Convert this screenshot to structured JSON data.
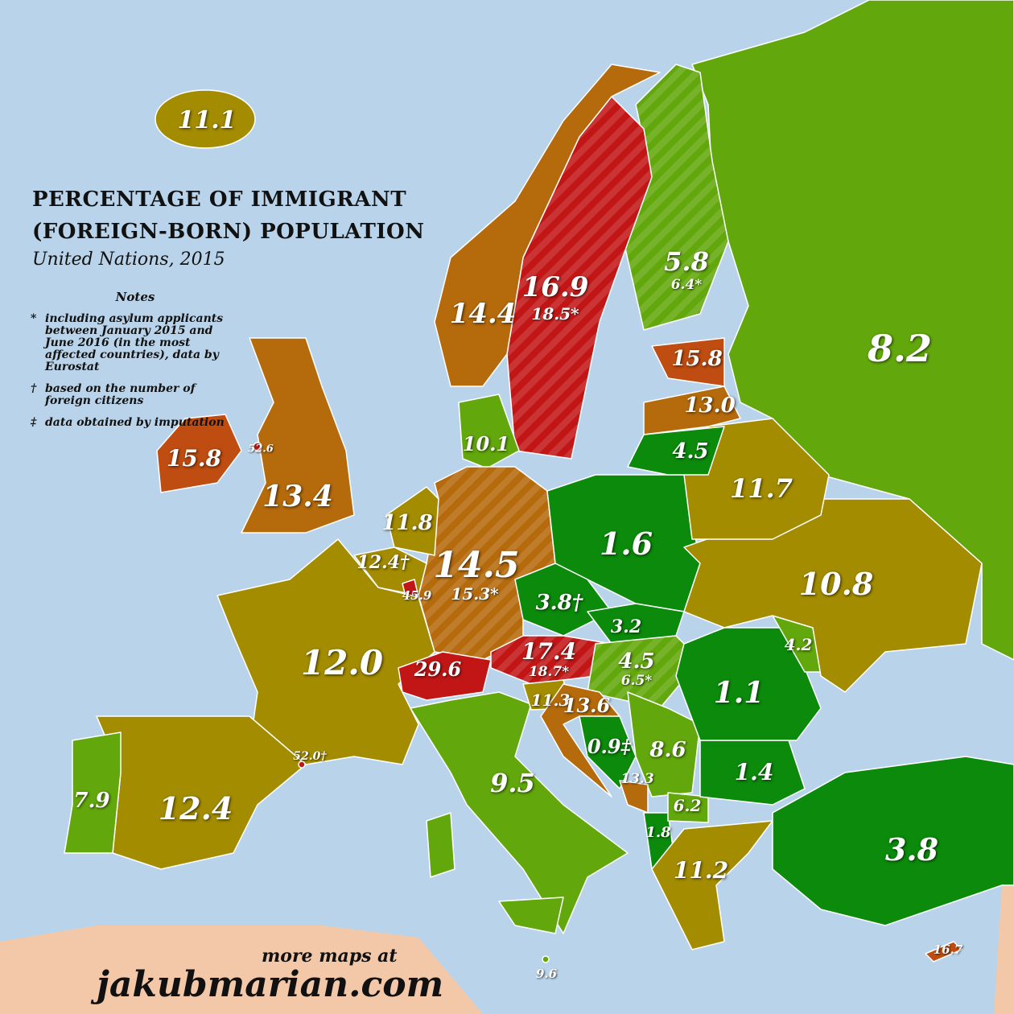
{
  "title_line1": "PERCENTAGE OF IMMIGRANT",
  "title_line2": "(FOREIGN-BORN) POPULATION",
  "subtitle": "United Nations, 2015",
  "notes": {
    "heading": "Notes",
    "items": [
      {
        "mark": "*",
        "text": "including asylum applicants between January 2015 and June 2016 (in the most affected countries), data by Eurostat"
      },
      {
        "mark": "†",
        "text": "based on the number of foreign citizens"
      },
      {
        "mark": "‡",
        "text": "data obtained by imputation"
      }
    ]
  },
  "credit": {
    "line1": "more maps at",
    "line2": "jakubmarian.com"
  },
  "colors": {
    "sea": "#b9d4ea",
    "dark_green": "#0b8a0b",
    "light_green": "#62a80c",
    "olive": "#a38c00",
    "brown": "#b56a0c",
    "orange_red": "#bf4c10",
    "red": "#c21616",
    "non_europe": "#f2c8a8"
  },
  "values": {
    "iceland": "11.1",
    "norway": "14.4",
    "sweden": "16.9",
    "sweden_asylum": "18.5*",
    "finland": "5.8",
    "finland_asylum": "6.4*",
    "russia": "8.2",
    "estonia": "15.8",
    "latvia": "13.0",
    "lithuania": "4.5",
    "belarus": "11.7",
    "ireland": "15.8",
    "isle_of_man": "52.6",
    "uk": "13.4",
    "denmark": "10.1",
    "netherlands": "11.8",
    "belgium": "12.4†",
    "luxembourg": "45.9",
    "germany": "14.5",
    "germany_asylum": "15.3*",
    "poland": "1.6",
    "czechia": "3.8†",
    "ukraine": "10.8",
    "france": "12.0",
    "switzerland": "29.6",
    "austria": "17.4",
    "austria_asylum": "18.7*",
    "slovakia": "3.2",
    "hungary": "4.5",
    "hungary_asylum": "6.5*",
    "moldova": "4.2",
    "romania": "1.1",
    "slovenia": "11.3",
    "croatia": "13.6",
    "bosnia": "0.9‡",
    "serbia": "8.6",
    "montenegro": "13.3",
    "bulgaria": "1.4",
    "north_macedonia": "6.2",
    "albania": "1.8",
    "greece": "11.2",
    "turkey": "3.8",
    "cyprus": "16.7",
    "malta": "9.6",
    "italy": "9.5",
    "portugal": "7.9",
    "spain": "12.4",
    "andorra": "52.0†"
  }
}
